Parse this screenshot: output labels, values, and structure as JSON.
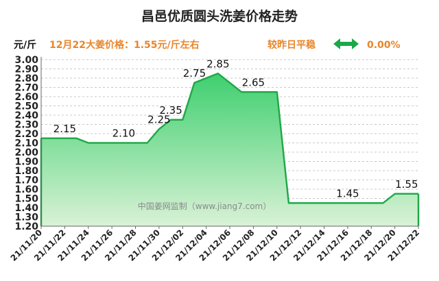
{
  "header": {
    "title": "昌邑优质圆头洗姜价格走势",
    "unit": "元/斤",
    "price_note": "12月22大姜价格：1.55元/斤左右",
    "compare_label": "较昨日平稳",
    "change_pct": "0.00%",
    "arrow_icon": "double-arrow-icon",
    "accent_color": "#e8852a",
    "arrow_color": "#1aa84a"
  },
  "watermark": "中国姜网监制（www.jiang7.com）",
  "chart_data": {
    "type": "area",
    "title": "昌邑优质圆头洗姜价格走势",
    "ylabel": "元/斤",
    "ylim": [
      1.2,
      3.0
    ],
    "yticks": [
      "3.00",
      "2.90",
      "2.80",
      "2.70",
      "2.60",
      "2.50",
      "2.40",
      "2.30",
      "2.20",
      "2.10",
      "2.00",
      "1.90",
      "1.80",
      "1.70",
      "1.60",
      "1.50",
      "1.40",
      "1.30",
      "1.20"
    ],
    "x_tick_labels": [
      "21/11/20",
      "21/11/22",
      "21/11/24",
      "21/11/26",
      "21/11/28",
      "21/11/30",
      "21/12/02",
      "21/12/04",
      "21/12/06",
      "21/12/08",
      "21/12/10",
      "21/12/12",
      "21/12/14",
      "21/12/16",
      "21/12/18",
      "21/12/20",
      "21/12/22"
    ],
    "grid": true,
    "series": [
      {
        "points": [
          {
            "x": "2021-11-20",
            "y": 2.15
          },
          {
            "x": "2021-11-23",
            "y": 2.15
          },
          {
            "x": "2021-11-24",
            "y": 2.1
          },
          {
            "x": "2021-11-29",
            "y": 2.1
          },
          {
            "x": "2021-11-30",
            "y": 2.25
          },
          {
            "x": "2021-12-01",
            "y": 2.35
          },
          {
            "x": "2021-12-02",
            "y": 2.35
          },
          {
            "x": "2021-12-03",
            "y": 2.75
          },
          {
            "x": "2021-12-05",
            "y": 2.85
          },
          {
            "x": "2021-12-07",
            "y": 2.65
          },
          {
            "x": "2021-12-10",
            "y": 2.65
          },
          {
            "x": "2021-12-11",
            "y": 1.45
          },
          {
            "x": "2021-12-19",
            "y": 1.45
          },
          {
            "x": "2021-12-20",
            "y": 1.55
          },
          {
            "x": "2021-12-22",
            "y": 1.55
          }
        ]
      }
    ],
    "data_labels": [
      {
        "x": "2021-11-22",
        "y": 2.15,
        "text": "2.15"
      },
      {
        "x": "2021-11-27",
        "y": 2.1,
        "text": "2.10"
      },
      {
        "x": "2021-11-30",
        "y": 2.25,
        "text": "2.25"
      },
      {
        "x": "2021-12-01",
        "y": 2.35,
        "text": "2.35"
      },
      {
        "x": "2021-12-03",
        "y": 2.75,
        "text": "2.75"
      },
      {
        "x": "2021-12-05",
        "y": 2.85,
        "text": "2.85"
      },
      {
        "x": "2021-12-08",
        "y": 2.65,
        "text": "2.65"
      },
      {
        "x": "2021-12-16",
        "y": 1.45,
        "text": "1.45"
      },
      {
        "x": "2021-12-21",
        "y": 1.55,
        "text": "1.55"
      }
    ],
    "line_color": "#22a84a",
    "fill_top_color": "#3fcf6f",
    "fill_bottom_color": "#d9f2d6"
  }
}
